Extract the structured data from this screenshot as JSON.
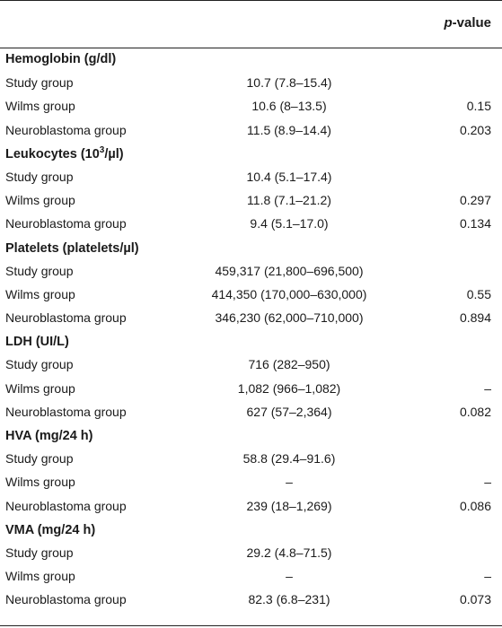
{
  "header": {
    "pvalue_italic": "p",
    "pvalue_rest": "-value"
  },
  "sections": [
    {
      "title_pre": "Hemoglobin (g/dl)",
      "title_sup": "",
      "title_post": "",
      "rows": [
        {
          "label": "Study group",
          "value": "10.7 (7.8–15.4)",
          "p": ""
        },
        {
          "label": "Wilms group",
          "value": "10.6 (8–13.5)",
          "p": "0.15"
        },
        {
          "label": "Neuroblastoma group",
          "value": "11.5 (8.9–14.4)",
          "p": "0.203"
        }
      ]
    },
    {
      "title_pre": "Leukocytes (10",
      "title_sup": "3",
      "title_post": "/µl)",
      "rows": [
        {
          "label": "Study group",
          "value": "10.4 (5.1–17.4)",
          "p": ""
        },
        {
          "label": "Wilms group",
          "value": "11.8 (7.1–21.2)",
          "p": "0.297"
        },
        {
          "label": "Neuroblastoma group",
          "value": "9.4 (5.1–17.0)",
          "p": "0.134"
        }
      ]
    },
    {
      "title_pre": "Platelets (platelets/µl)",
      "title_sup": "",
      "title_post": "",
      "rows": [
        {
          "label": "Study group",
          "value": "459,317 (21,800–696,500)",
          "p": ""
        },
        {
          "label": "Wilms group",
          "value": "414,350 (170,000–630,000)",
          "p": "0.55"
        },
        {
          "label": "Neuroblastoma group",
          "value": "346,230 (62,000–710,000)",
          "p": "0.894"
        }
      ]
    },
    {
      "title_pre": "LDH (UI/L)",
      "title_sup": "",
      "title_post": "",
      "rows": [
        {
          "label": "Study group",
          "value": "716 (282–950)",
          "p": ""
        },
        {
          "label": "Wilms group",
          "value": "1,082 (966–1,082)",
          "p": "–"
        },
        {
          "label": "Neuroblastoma group",
          "value": "627 (57–2,364)",
          "p": "0.082"
        }
      ]
    },
    {
      "title_pre": "HVA (mg/24 h)",
      "title_sup": "",
      "title_post": "",
      "rows": [
        {
          "label": "Study group",
          "value": "58.8 (29.4–91.6)",
          "p": ""
        },
        {
          "label": "Wilms group",
          "value": "–",
          "p": "–"
        },
        {
          "label": "Neuroblastoma group",
          "value": "239 (18–1,269)",
          "p": "0.086"
        }
      ]
    },
    {
      "title_pre": "VMA (mg/24 h)",
      "title_sup": "",
      "title_post": "",
      "rows": [
        {
          "label": "Study group",
          "value": "29.2 (4.8–71.5)",
          "p": ""
        },
        {
          "label": "Wilms group",
          "value": "–",
          "p": "–"
        },
        {
          "label": "Neuroblastoma group",
          "value": "82.3 (6.8–231)",
          "p": "0.073"
        }
      ]
    }
  ]
}
